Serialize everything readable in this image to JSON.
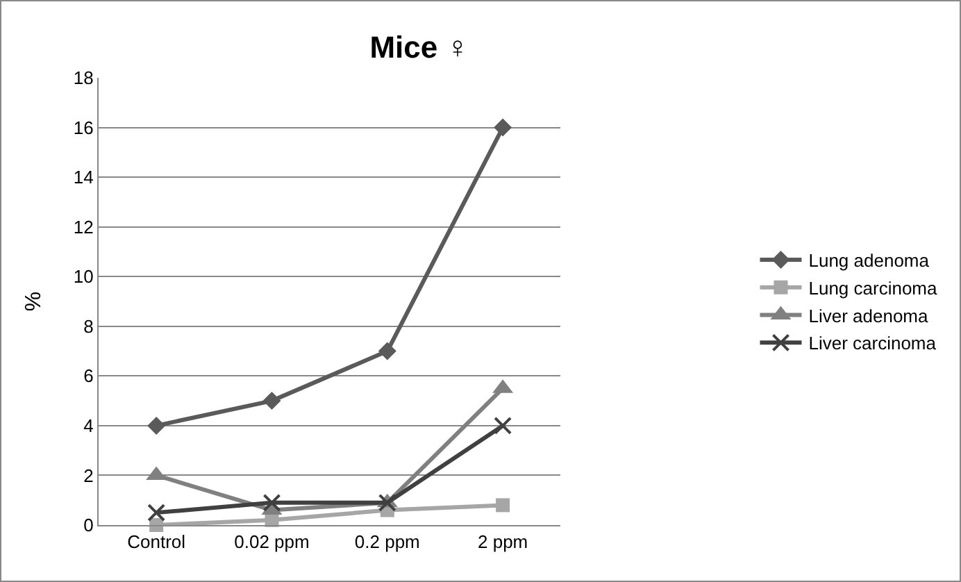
{
  "chart_data": {
    "type": "line",
    "title": "Mice ♀",
    "ylabel": "%",
    "categories": [
      "Control",
      "0.02 ppm",
      "0.2 ppm",
      "2 ppm"
    ],
    "series": [
      {
        "name": "Lung adenoma",
        "color": "#5a5a5a",
        "marker": "diamond",
        "values": [
          4,
          5,
          7,
          16
        ]
      },
      {
        "name": "Lung carcinoma",
        "color": "#a6a6a6",
        "marker": "square",
        "values": [
          0,
          0.2,
          0.6,
          0.8
        ]
      },
      {
        "name": "Liver adenoma",
        "color": "#808080",
        "marker": "triangle",
        "values": [
          2,
          0.6,
          0.9,
          5.5
        ]
      },
      {
        "name": "Liver carcinoma",
        "color": "#404040",
        "marker": "cross",
        "values": [
          0.5,
          0.9,
          0.9,
          4
        ]
      }
    ],
    "ylim": [
      0,
      18
    ],
    "yticks": [
      0,
      2,
      4,
      6,
      8,
      10,
      12,
      14,
      16,
      18
    ],
    "grid": "y",
    "legend": "right",
    "line_style": "solid"
  }
}
